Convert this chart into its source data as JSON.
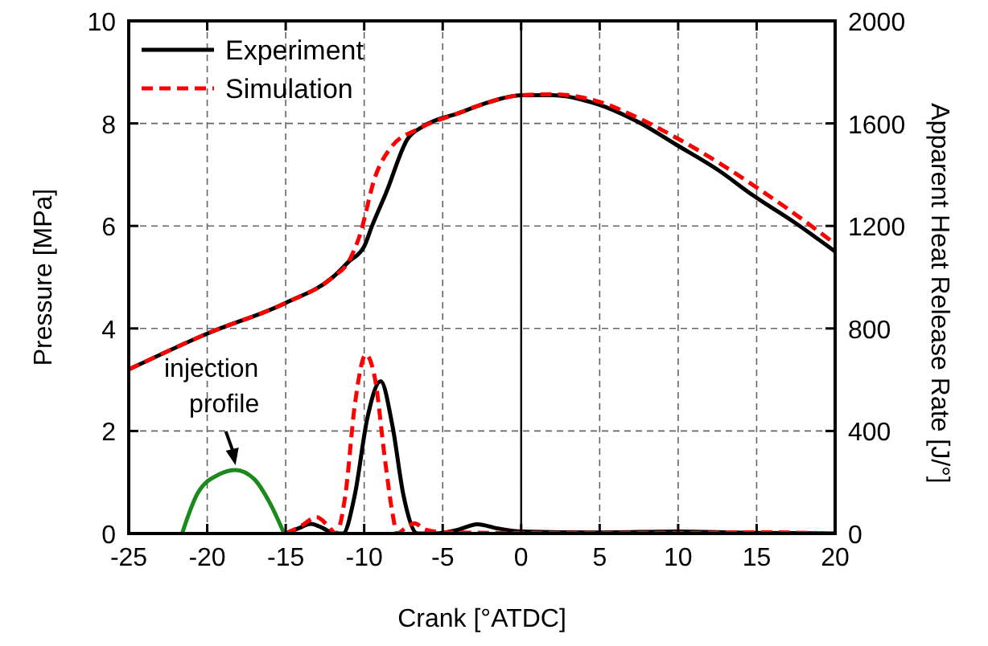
{
  "chart_data": {
    "type": "line",
    "xlabel": "Crank [°ATDC]",
    "ylabel": "Pressure [MPa]",
    "y2label": "Apparent Heat Release Rate [J/°]",
    "xlim": [
      -25,
      20
    ],
    "xticks": [
      -25,
      -20,
      -15,
      -10,
      -5,
      0,
      5,
      10,
      15,
      20
    ],
    "ylim": [
      0,
      10
    ],
    "yticks": [
      0,
      2,
      4,
      6,
      8,
      10
    ],
    "y2lim": [
      0,
      2000
    ],
    "y2ticks": [
      0,
      400,
      800,
      1200,
      1600,
      2000
    ],
    "grid": true,
    "legend": "top left",
    "ref_lines": [
      {
        "axis": "x",
        "value": 0,
        "color": "#000000",
        "line_style": "solid"
      }
    ],
    "annotations": [
      {
        "text": "injection profile",
        "x": -18.2,
        "y": 1.24
      }
    ],
    "series": [
      {
        "name": "Experiment",
        "color": "#000000",
        "line_style": "solid",
        "x": [
          -25,
          -20,
          -15,
          -12,
          -11,
          -10,
          -9.5,
          -8.6,
          -7.25,
          -6.2,
          -4,
          -2,
          0,
          2,
          4.9,
          7.5,
          9.85,
          12.5,
          14.8,
          17.5,
          20
        ],
        "values": [
          3.2,
          3.9,
          4.5,
          5.0,
          5.3,
          5.6,
          6.0,
          6.65,
          7.69,
          7.95,
          8.2,
          8.42,
          8.55,
          8.55,
          8.37,
          8.02,
          7.59,
          7.1,
          6.59,
          6.05,
          5.5
        ]
      },
      {
        "name": "Simulation",
        "color": "#ff0000",
        "line_style": "dashed",
        "x": [
          -25,
          -20,
          -15,
          -12,
          -11,
          -10.3,
          -9.3,
          -8.3,
          -6.5,
          -4,
          -2,
          0,
          2,
          5,
          7.5,
          10,
          12.5,
          15,
          17.5,
          20
        ],
        "values": [
          3.2,
          3.9,
          4.5,
          5.0,
          5.3,
          5.8,
          6.96,
          7.53,
          7.9,
          8.2,
          8.42,
          8.55,
          8.57,
          8.42,
          8.1,
          7.7,
          7.25,
          6.75,
          6.22,
          5.65
        ]
      },
      {
        "color": "#000000",
        "line_style": "solid",
        "axis": "y2",
        "x": [
          -15,
          -14.2,
          -13.4,
          -12.6,
          -11.9,
          -11.35,
          -10.6,
          -9.8,
          -8.95,
          -8.2,
          -7.5,
          -6.6,
          -5.5,
          -4,
          -2.8,
          -1.5,
          0,
          5,
          10,
          15,
          20
        ],
        "values": [
          0,
          20,
          38,
          20,
          0,
          0,
          150,
          450,
          594,
          420,
          150,
          0,
          0,
          15,
          36,
          20,
          8,
          4,
          8,
          2,
          0
        ]
      },
      {
        "color": "#ff0000",
        "line_style": "dashed",
        "axis": "y2",
        "x": [
          -15,
          -14,
          -13.05,
          -12.3,
          -11.8,
          -11.2,
          -10.6,
          -9.9,
          -9.3,
          -8.7,
          -8.2,
          -7.9,
          -7.4,
          -6.8,
          -6.1,
          -5,
          0,
          5,
          10,
          15,
          20
        ],
        "values": [
          0,
          30,
          64,
          30,
          0,
          150,
          500,
          698,
          600,
          300,
          80,
          0,
          20,
          40,
          15,
          5,
          2,
          2,
          2,
          5,
          0
        ]
      },
      {
        "color": "#1a8a1a",
        "line_style": "solid",
        "x": [
          -21.6,
          -20.6,
          -19.2,
          -18.2,
          -17.0,
          -16.0,
          -15.1
        ],
        "values": [
          0,
          0.79,
          1.16,
          1.24,
          1.06,
          0.59,
          0
        ]
      }
    ]
  }
}
